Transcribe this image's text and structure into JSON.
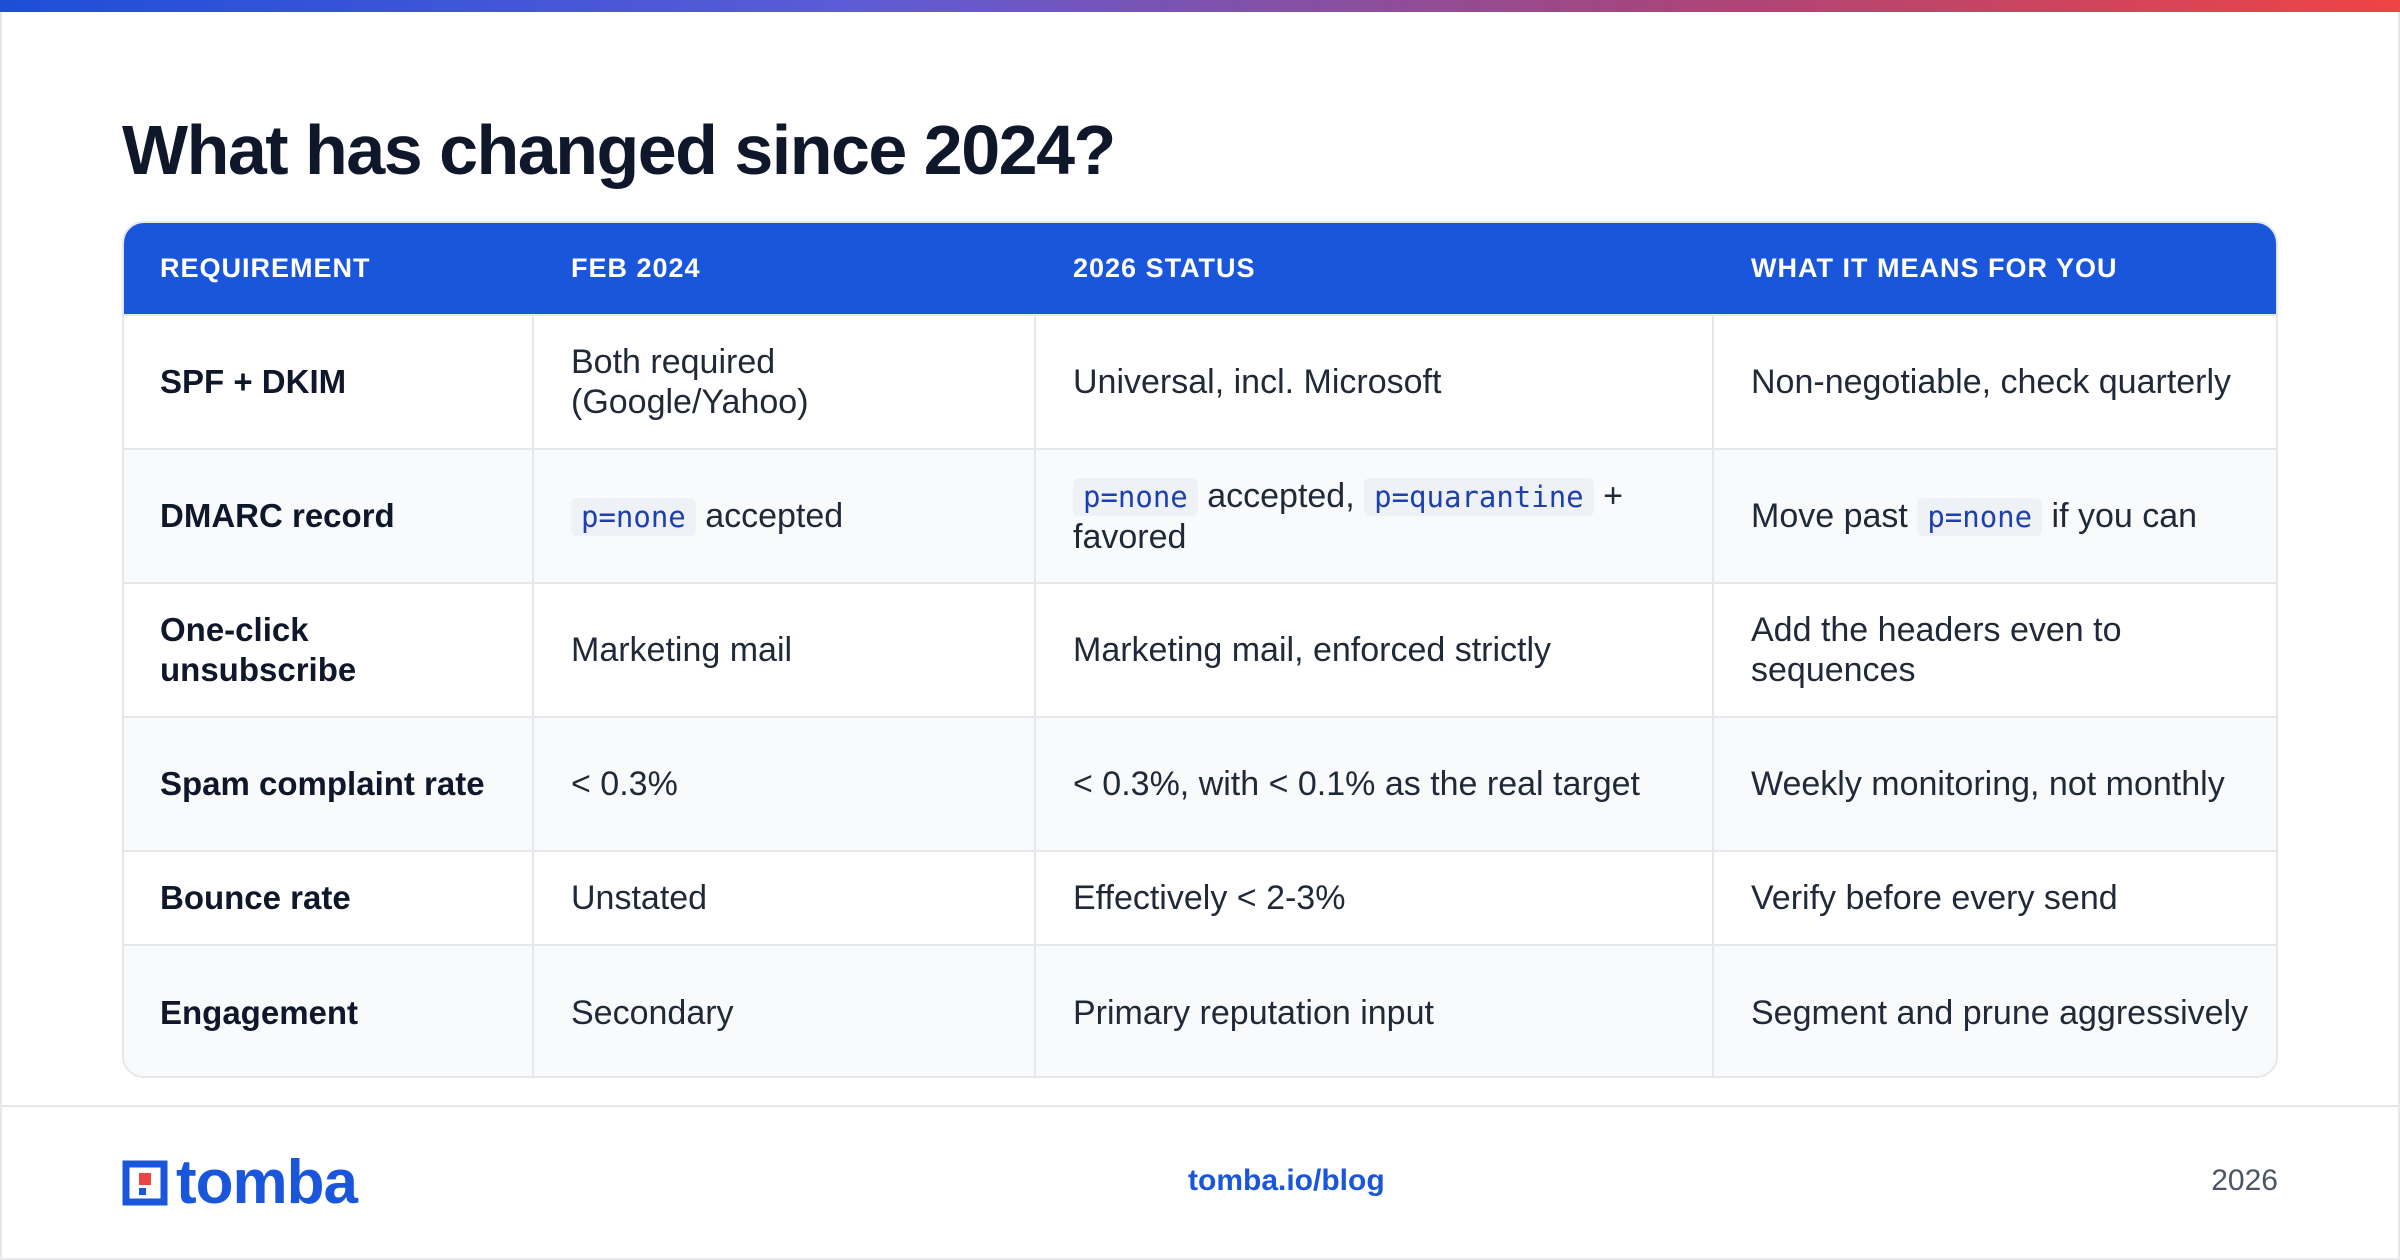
{
  "title": "What has changed since 2024?",
  "colors": {
    "accent": "#1a56db",
    "code_text": "#1e40af",
    "heading": "#0f172a"
  },
  "table": {
    "headers": [
      "REQUIREMENT",
      "FEB 2024",
      "2026 STATUS",
      "WHAT IT MEANS FOR YOU"
    ],
    "rows": [
      {
        "requirement": "SPF + DKIM",
        "feb2024": {
          "text": "Both required (Google/Yahoo)"
        },
        "status2026": {
          "text": "Universal, incl. Microsoft"
        },
        "means": {
          "text": "Non-negotiable, check quarterly"
        }
      },
      {
        "requirement": "DMARC record",
        "feb2024": {
          "code": "p=none",
          "after": "accepted"
        },
        "status2026": {
          "code1": "p=none",
          "mid": "accepted,",
          "code2": "p=quarantine",
          "after": "+ favored"
        },
        "means": {
          "before": "Move past",
          "code": "p=none",
          "after": "if you can"
        }
      },
      {
        "requirement": "One-click unsubscribe",
        "feb2024": {
          "text": "Marketing mail"
        },
        "status2026": {
          "text": "Marketing mail, enforced strictly"
        },
        "means": {
          "text": "Add the headers even to sequences"
        }
      },
      {
        "requirement": "Spam complaint rate",
        "feb2024": {
          "text": "< 0.3%"
        },
        "status2026": {
          "text": "< 0.3%, with < 0.1% as the real target"
        },
        "means": {
          "text": "Weekly monitoring, not monthly"
        }
      },
      {
        "requirement": "Bounce rate",
        "feb2024": {
          "text": "Unstated"
        },
        "status2026": {
          "text": "Effectively < 2-3%"
        },
        "means": {
          "text": "Verify before every send"
        }
      },
      {
        "requirement": "Engagement",
        "feb2024": {
          "text": "Secondary"
        },
        "status2026": {
          "text": "Primary reputation input"
        },
        "means": {
          "text": "Segment and prune aggressively"
        }
      }
    ]
  },
  "footer": {
    "logo_text": "tomba",
    "site": "tomba.io/blog",
    "year": "2026"
  }
}
